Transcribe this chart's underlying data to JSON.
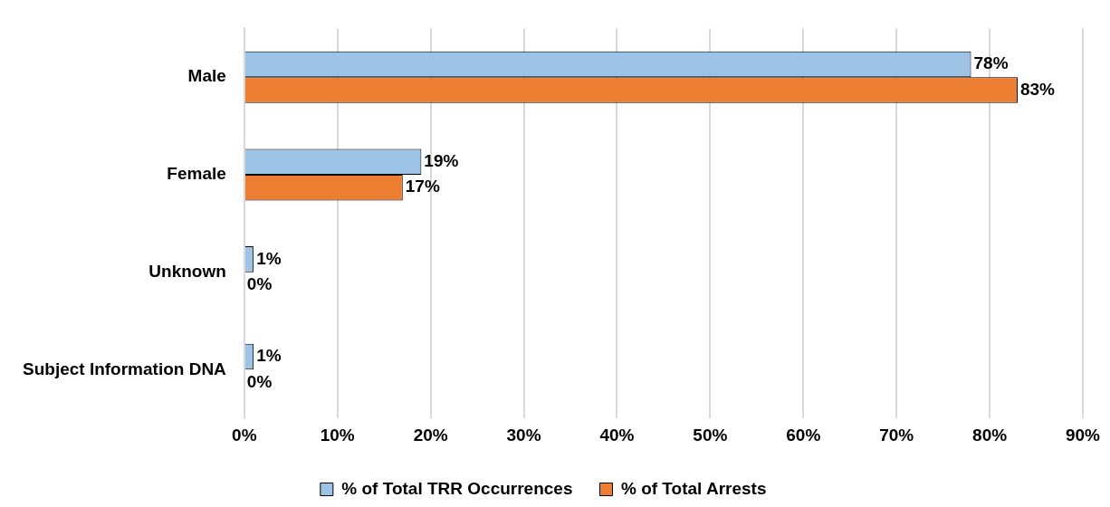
{
  "chart_data": {
    "type": "bar",
    "orientation": "horizontal",
    "categories": [
      "Male",
      "Female",
      "Unknown",
      "Subject Information DNA"
    ],
    "series": [
      {
        "name": "% of Total TRR Occurrences",
        "color": "#9dc3e6",
        "values": [
          78,
          19,
          1,
          1
        ],
        "value_labels": [
          "78%",
          "19%",
          "1%",
          "1%"
        ]
      },
      {
        "name": "% of Total Arrests",
        "color": "#ed7d31",
        "values": [
          83,
          17,
          0,
          0
        ],
        "value_labels": [
          "83%",
          "17%",
          "0%",
          "0%"
        ]
      }
    ],
    "xlim": [
      0,
      90
    ],
    "xticks": [
      {
        "value": 0,
        "label": "0%"
      },
      {
        "value": 10,
        "label": "10%"
      },
      {
        "value": 20,
        "label": "20%"
      },
      {
        "value": 30,
        "label": "30%"
      },
      {
        "value": 40,
        "label": "40%"
      },
      {
        "value": 50,
        "label": "50%"
      },
      {
        "value": 60,
        "label": "60%"
      },
      {
        "value": 70,
        "label": "70%"
      },
      {
        "value": 80,
        "label": "80%"
      },
      {
        "value": 90,
        "label": "90%"
      }
    ],
    "grid": "x",
    "legend": "bottom"
  }
}
